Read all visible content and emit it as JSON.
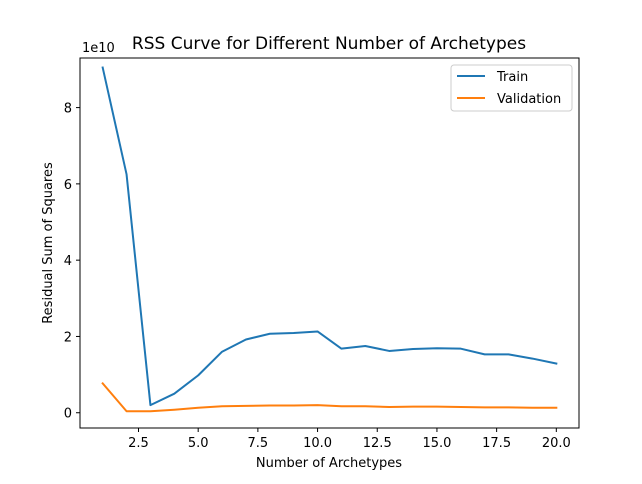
{
  "chart_data": {
    "type": "line",
    "title": "RSS Curve for Different Number of Archetypes",
    "xlabel": "Number of Archetypes",
    "ylabel": "Residual Sum of Squares",
    "y_offset_text": "1e10",
    "xlim": [
      0.05,
      20.95
    ],
    "ylim": [
      -0.4,
      9.3
    ],
    "y_scale_factor": 10000000000.0,
    "x_ticks": [
      2.5,
      5.0,
      7.5,
      10.0,
      12.5,
      15.0,
      17.5,
      20.0
    ],
    "x_tick_labels": [
      "2.5",
      "5.0",
      "7.5",
      "10.0",
      "12.5",
      "15.0",
      "17.5",
      "20.0"
    ],
    "y_ticks": [
      0,
      2,
      4,
      6,
      8
    ],
    "y_tick_labels": [
      "0",
      "2",
      "4",
      "6",
      "8"
    ],
    "grid": false,
    "legend_position": "top-right",
    "x": [
      1,
      2,
      3,
      4,
      5,
      6,
      7,
      8,
      9,
      10,
      11,
      12,
      13,
      14,
      15,
      16,
      17,
      18,
      19,
      20
    ],
    "series": [
      {
        "name": "Train",
        "color": "#1f77b4",
        "values": [
          9.05,
          6.25,
          0.2,
          0.5,
          0.98,
          1.6,
          1.92,
          2.07,
          2.09,
          2.13,
          1.68,
          1.75,
          1.62,
          1.67,
          1.69,
          1.68,
          1.53,
          1.53,
          1.42,
          1.29
        ]
      },
      {
        "name": "Validation",
        "color": "#ff7f0e",
        "values": [
          0.77,
          0.04,
          0.04,
          0.08,
          0.13,
          0.17,
          0.18,
          0.19,
          0.19,
          0.2,
          0.17,
          0.17,
          0.15,
          0.16,
          0.16,
          0.15,
          0.14,
          0.14,
          0.13,
          0.13
        ]
      }
    ]
  }
}
